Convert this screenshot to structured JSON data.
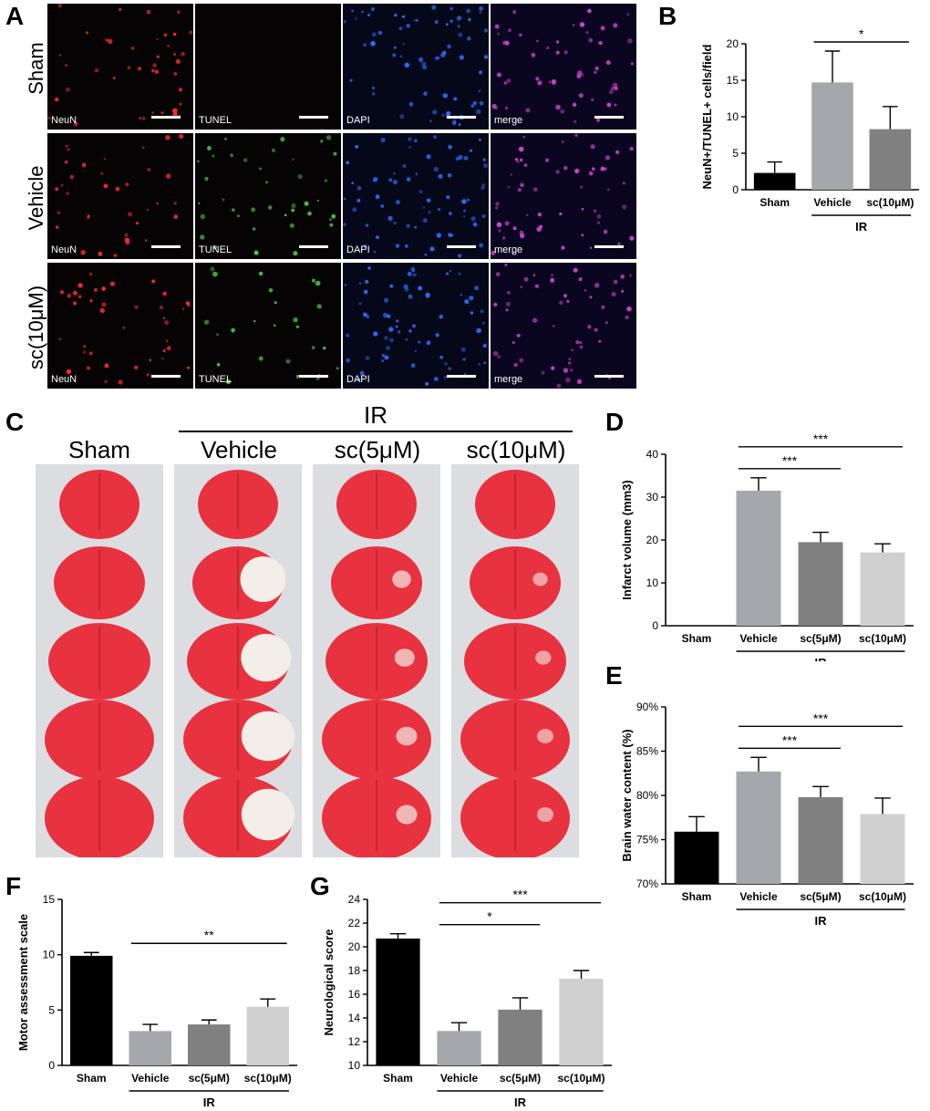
{
  "panel_letters": {
    "a": "A",
    "b": "B",
    "c": "C",
    "d": "D",
    "e": "E",
    "f": "F",
    "g": "G"
  },
  "panel_a": {
    "rows": [
      "Sham",
      "Vehicle",
      "sc(10μM)"
    ],
    "channels": [
      "NeuN",
      "TUNEL",
      "DAPI",
      "merge"
    ],
    "channel_colors": {
      "NeuN": "#ff2a2a",
      "TUNEL": "#4ccc3a",
      "DAPI": "#2a6cff",
      "merge": "#d040d0"
    }
  },
  "panel_c": {
    "group_label": "IR",
    "columns": [
      "Sham",
      "Vehicle",
      "sc(5μM)",
      "sc(10μM)"
    ]
  },
  "chart_data": [
    {
      "id": "B",
      "type": "bar",
      "categories": [
        "Sham",
        "Vehicle",
        "sc(10μM)"
      ],
      "values": [
        2.3,
        14.7,
        8.3
      ],
      "errors": [
        1.5,
        4.3,
        3.1
      ],
      "colors": [
        "#000000",
        "#a6a6ad",
        "#808080"
      ],
      "ylabel": "NeuN+/TUNEL+ cells/field",
      "ylim": [
        0,
        20
      ],
      "yticks": [
        0,
        5,
        10,
        15,
        20
      ],
      "group_label": "IR",
      "group_span": [
        1,
        2
      ],
      "significance": [
        {
          "from": 1,
          "to": 2,
          "label": "*"
        }
      ]
    },
    {
      "id": "D",
      "type": "bar",
      "categories": [
        "Sham",
        "Vehicle",
        "sc(5μM)",
        "sc(10μM)"
      ],
      "values": [
        0,
        31.5,
        19.5,
        17.1
      ],
      "errors": [
        0,
        3.0,
        2.3,
        2.0
      ],
      "colors": [
        "#000000",
        "#a6a6ad",
        "#808080",
        "#d0d0d0"
      ],
      "ylabel": "Infarct volume (mm3)",
      "ylim": [
        0,
        40
      ],
      "yticks": [
        0,
        10,
        20,
        30,
        40
      ],
      "group_label": "IR",
      "group_span": [
        1,
        3
      ],
      "significance": [
        {
          "from": 1,
          "to": 2,
          "label": "***"
        },
        {
          "from": 1,
          "to": 3,
          "label": "***"
        }
      ]
    },
    {
      "id": "E",
      "type": "bar",
      "categories": [
        "Sham",
        "Vehicle",
        "sc(5μM)",
        "sc(10μM)"
      ],
      "values": [
        75.9,
        82.7,
        79.8,
        77.9
      ],
      "errors": [
        1.7,
        1.6,
        1.2,
        1.8
      ],
      "colors": [
        "#000000",
        "#a6a6ad",
        "#808080",
        "#d0d0d0"
      ],
      "ylabel": "Brain water content (%)",
      "ylim": [
        70,
        90
      ],
      "yticks": [
        70,
        75,
        80,
        85,
        90
      ],
      "ytick_suffix": "%",
      "group_label": "IR",
      "group_span": [
        1,
        3
      ],
      "significance": [
        {
          "from": 1,
          "to": 2,
          "label": "***"
        },
        {
          "from": 1,
          "to": 3,
          "label": "***"
        }
      ]
    },
    {
      "id": "F",
      "type": "bar",
      "categories": [
        "Sham",
        "Vehicle",
        "sc(5μM)",
        "sc(10μM)"
      ],
      "values": [
        9.9,
        3.1,
        3.7,
        5.3
      ],
      "errors": [
        0.3,
        0.6,
        0.4,
        0.7
      ],
      "colors": [
        "#000000",
        "#a6a6ad",
        "#808080",
        "#d0d0d0"
      ],
      "ylabel": "Motor assessment scale",
      "ylim": [
        0,
        15
      ],
      "yticks": [
        0,
        5,
        10,
        15
      ],
      "group_label": "IR",
      "group_span": [
        1,
        3
      ],
      "significance": [
        {
          "from": 1,
          "to": 3,
          "label": "**"
        }
      ]
    },
    {
      "id": "G",
      "type": "bar",
      "categories": [
        "Sham",
        "Vehicle",
        "sc(5μM)",
        "sc(10μM)"
      ],
      "values": [
        20.7,
        12.9,
        14.7,
        17.3
      ],
      "errors": [
        0.4,
        0.7,
        1.0,
        0.7
      ],
      "colors": [
        "#000000",
        "#a6a6ad",
        "#808080",
        "#d0d0d0"
      ],
      "ylabel": "Neurological score",
      "ylim": [
        10,
        24
      ],
      "yticks": [
        10,
        12,
        14,
        16,
        18,
        20,
        22,
        24
      ],
      "group_label": "IR",
      "group_span": [
        1,
        3
      ],
      "significance": [
        {
          "from": 1,
          "to": 2,
          "label": "*"
        },
        {
          "from": 1,
          "to": 3,
          "label": "***"
        }
      ]
    }
  ]
}
